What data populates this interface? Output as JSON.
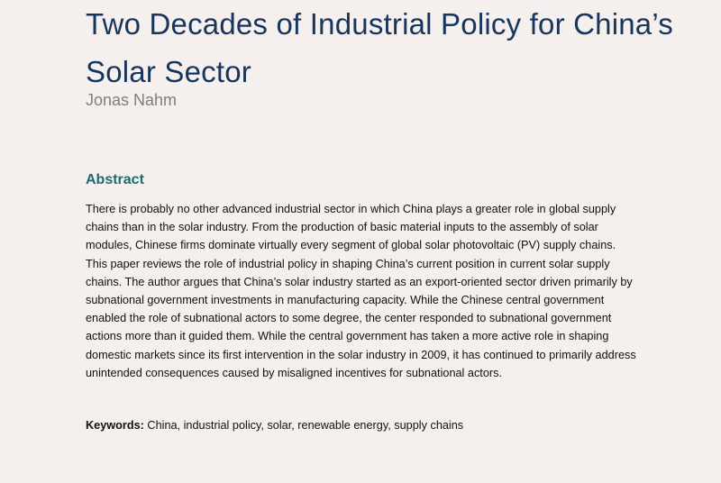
{
  "paper": {
    "title": "Two Decades of Industrial Policy for China’s Solar Sector",
    "author": "Jonas Nahm",
    "abstract_heading": "Abstract",
    "abstract_text": "There is probably no other advanced industrial sector in which China plays a greater role in global supply chains than in the solar industry. From the production of basic material inputs to the assembly of solar modules, Chinese firms dominate virtually every segment of global solar photovoltaic (PV) supply chains. This paper reviews the role of industrial policy in shaping China’s current position in current solar supply chains. The author argues that China’s solar industry started as an export-oriented sector driven primarily by subnational government investments in manufacturing capacity. While the Chinese central government enabled the role of subnational actors to some degree, the center responded to subnational government actions more than it guided them. While the central government has taken a more active role in shaping domestic markets since its first intervention in the solar industry in 2009, it has continued to primarily address unintended consequences caused by misaligned incentives for subnational actors.",
    "keywords_label": "Keywords:",
    "keywords_text": "China, industrial policy, solar, renewable energy, supply chains"
  }
}
